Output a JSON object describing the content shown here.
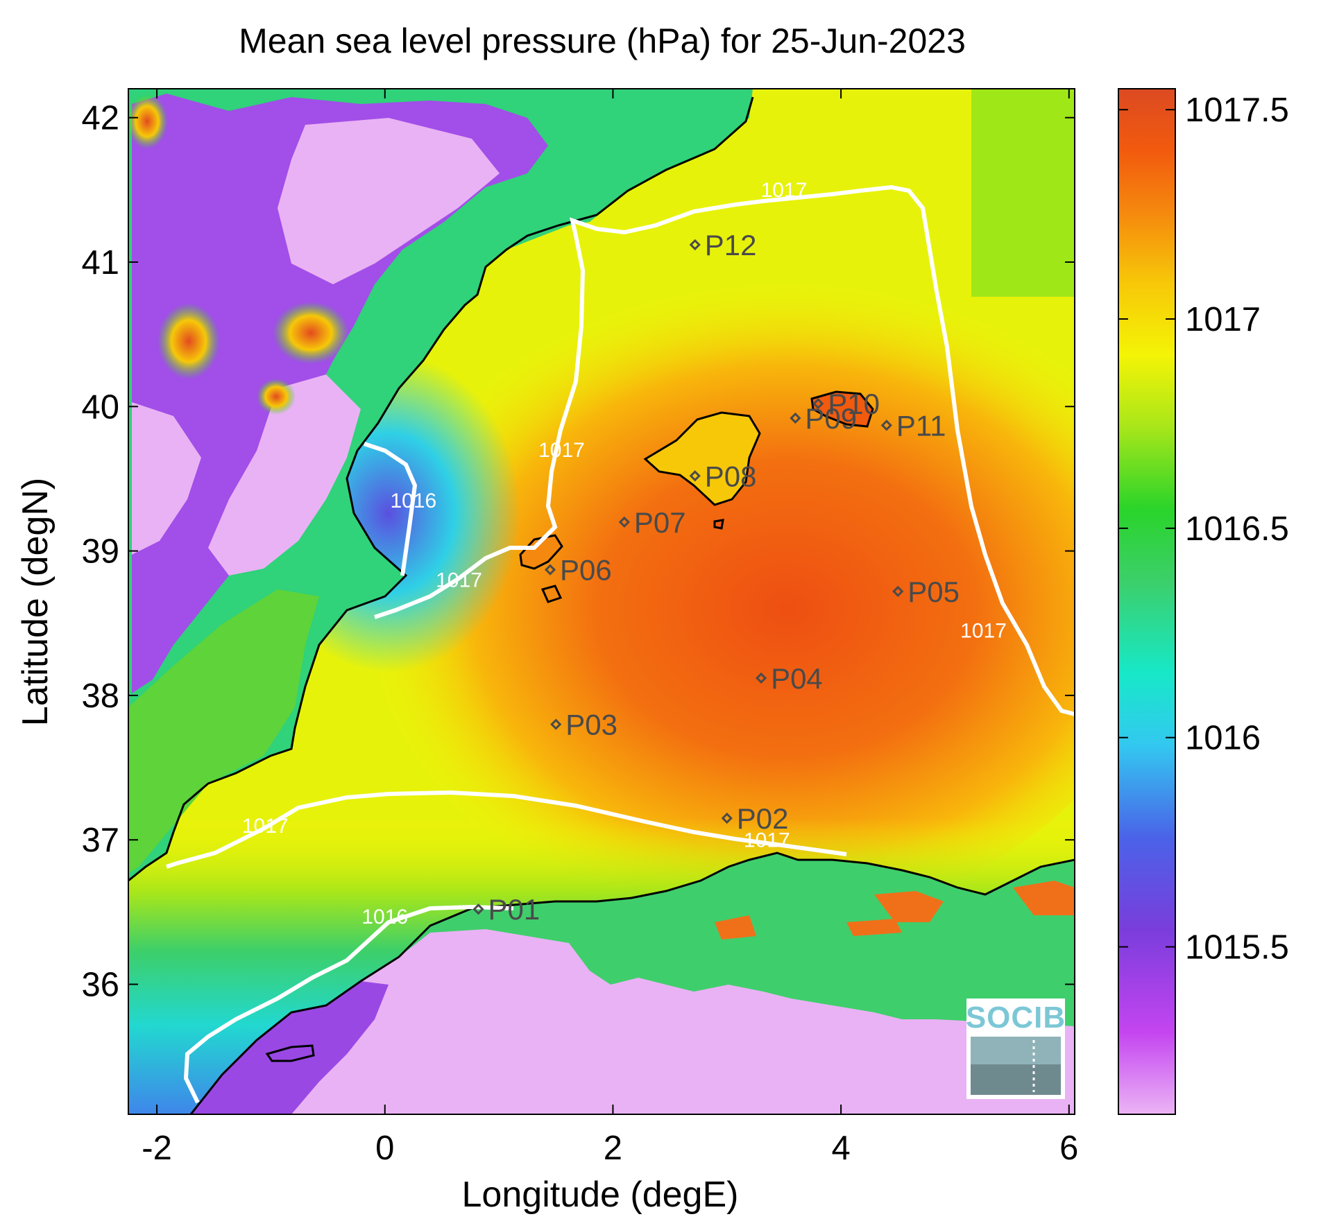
{
  "title": "Mean sea level pressure (hPa) for 25-Jun-2023",
  "axes": {
    "xlabel": "Longitude (degE)",
    "ylabel": "Latitude (degN)",
    "x_ticks": [
      "-2",
      "0",
      "2",
      "4",
      "6"
    ],
    "y_ticks": [
      "42",
      "41",
      "40",
      "39",
      "38",
      "37",
      "36"
    ],
    "xlim": [
      -2.25,
      6.05
    ],
    "ylim": [
      35.1,
      42.2
    ]
  },
  "colorbar": {
    "ticks": [
      "1017.5",
      "1017",
      "1016.5",
      "1016",
      "1015.5"
    ],
    "range": [
      1015.1,
      1017.55
    ],
    "colormap": [
      "#ebb4f5",
      "#c445f0",
      "#7a3ddc",
      "#4a63e8",
      "#33c8f0",
      "#17e8c8",
      "#3ccf6a",
      "#2ad42a",
      "#a8e61a",
      "#f4f406",
      "#f7c808",
      "#f5880e",
      "#f25a0e",
      "#dc4a22"
    ]
  },
  "contour_labels": [
    {
      "text": "1017",
      "lon": 3.5,
      "lat": 41.45
    },
    {
      "text": "1017",
      "lon": 1.55,
      "lat": 39.65
    },
    {
      "text": "1016",
      "lon": 0.25,
      "lat": 39.3
    },
    {
      "text": "1017",
      "lon": 0.65,
      "lat": 38.75
    },
    {
      "text": "1017",
      "lon": 5.25,
      "lat": 38.4
    },
    {
      "text": "1017",
      "lon": -1.05,
      "lat": 37.05
    },
    {
      "text": "1017",
      "lon": 3.35,
      "lat": 36.95
    },
    {
      "text": "1016",
      "lon": 0.0,
      "lat": 36.42
    }
  ],
  "stations": [
    {
      "name": "P01",
      "lon": 0.82,
      "lat": 36.52
    },
    {
      "name": "P02",
      "lon": 3.0,
      "lat": 37.15
    },
    {
      "name": "P03",
      "lon": 1.5,
      "lat": 37.8
    },
    {
      "name": "P04",
      "lon": 3.3,
      "lat": 38.12
    },
    {
      "name": "P05",
      "lon": 4.5,
      "lat": 38.72
    },
    {
      "name": "P06",
      "lon": 1.45,
      "lat": 38.87
    },
    {
      "name": "P07",
      "lon": 2.1,
      "lat": 39.2
    },
    {
      "name": "P08",
      "lon": 2.72,
      "lat": 39.52
    },
    {
      "name": "P09",
      "lon": 3.6,
      "lat": 39.92
    },
    {
      "name": "P10",
      "lon": 3.8,
      "lat": 40.02
    },
    {
      "name": "P11",
      "lon": 4.4,
      "lat": 39.87
    },
    {
      "name": "P12",
      "lon": 2.72,
      "lat": 41.12
    }
  ],
  "logo": {
    "text": "SOCIB"
  }
}
